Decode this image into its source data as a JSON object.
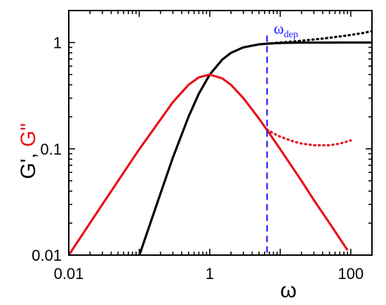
{
  "chart_data": {
    "type": "line",
    "xscale": "log",
    "yscale": "log",
    "xlim": [
      0.01,
      200
    ],
    "ylim": [
      0.01,
      2
    ],
    "x_ticks": [
      {
        "value": 0.01,
        "label": "0.01"
      },
      {
        "value": 1,
        "label": "1"
      },
      {
        "value": 100,
        "label": "100"
      }
    ],
    "y_ticks": [
      {
        "value": 0.01,
        "label": "0.01"
      },
      {
        "value": 0.1,
        "label": "0.1"
      },
      {
        "value": 1,
        "label": "1"
      }
    ],
    "xlabel": "ω",
    "ylabel": {
      "prefix": "G', ",
      "highlight": "G\""
    },
    "grid": false,
    "series": [
      {
        "key": "gprime",
        "color": "#000000",
        "style": "solid",
        "x": [
          0.1,
          0.2,
          0.3,
          0.5,
          0.7,
          1,
          1.5,
          2,
          3,
          5,
          7,
          10,
          15,
          20,
          30,
          50,
          70,
          100,
          150,
          200
        ],
        "y": [
          0.0099,
          0.038,
          0.083,
          0.2,
          0.33,
          0.5,
          0.69,
          0.8,
          0.9,
          0.962,
          0.98,
          0.99,
          0.996,
          0.9975,
          0.9989,
          0.9996,
          0.9998,
          0.9999,
          1.0,
          1.0
        ]
      },
      {
        "key": "gprime-dotted",
        "color": "#000000",
        "style": "dotted",
        "x": [
          6.5,
          10,
          20,
          40,
          70,
          100,
          150,
          200
        ],
        "y": [
          0.975,
          1.0,
          1.04,
          1.09,
          1.14,
          1.18,
          1.23,
          1.28
        ]
      },
      {
        "key": "gdoubleprime",
        "color": "#e8141c",
        "style": "solid",
        "x": [
          0.01,
          0.03,
          0.1,
          0.3,
          0.5,
          0.7,
          1,
          1.5,
          2,
          3,
          5,
          7,
          10,
          20,
          30,
          50,
          70,
          90
        ],
        "y": [
          0.01,
          0.03,
          0.099,
          0.275,
          0.4,
          0.47,
          0.5,
          0.46,
          0.4,
          0.3,
          0.192,
          0.14,
          0.099,
          0.05,
          0.033,
          0.02,
          0.0143,
          0.0111
        ]
      },
      {
        "key": "gdoubleprime-dotted",
        "color": "#e8141c",
        "style": "dotted",
        "x": [
          6.5,
          8,
          10,
          15,
          20,
          30,
          50,
          70,
          100
        ],
        "y": [
          0.152,
          0.14,
          0.13,
          0.118,
          0.112,
          0.108,
          0.108,
          0.112,
          0.12
        ]
      }
    ],
    "annotations": [
      {
        "type": "vline",
        "x": 6.5,
        "color": "#1a1aff",
        "style": "dashed",
        "label_main": "ω",
        "label_sub": "dep"
      }
    ]
  }
}
